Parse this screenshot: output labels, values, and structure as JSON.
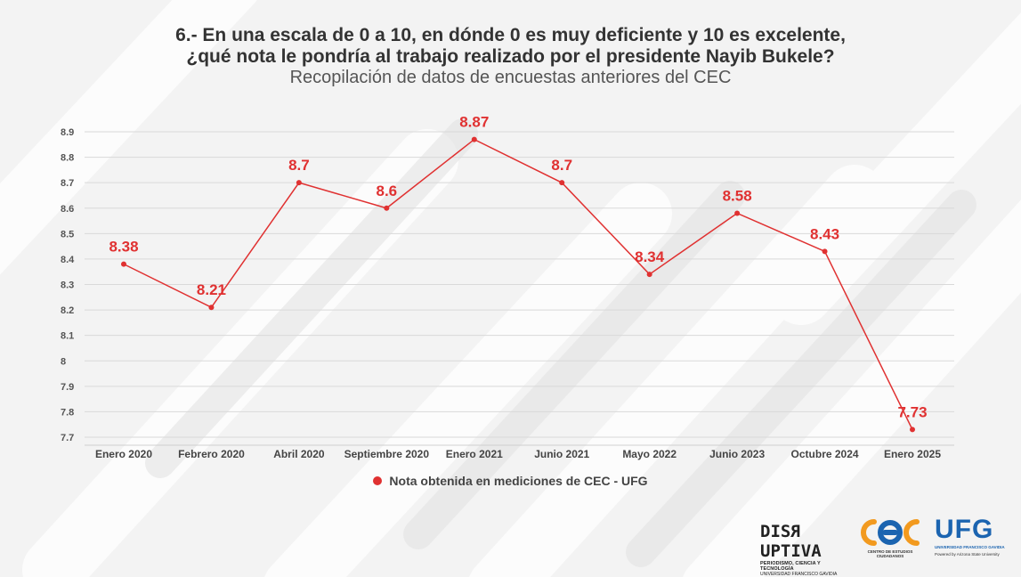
{
  "title_line1": "6.- En una escala de 0 a 10, en dónde 0 es muy deficiente y 10 es excelente,",
  "title_line2": "¿qué nota le pondría al trabajo realizado por el presidente Nayib Bukele?",
  "subtitle": "Recopilación de datos de encuestas anteriores del CEC",
  "legend_label": "Nota obtenida en mediciones de CEC - UFG",
  "colors": {
    "series": "#e03131",
    "grid": "#d9d9d9",
    "text": "#444444"
  },
  "chart_data": {
    "type": "line",
    "categories": [
      "Enero 2020",
      "Febrero 2020",
      "Abril 2020",
      "Septiembre 2020",
      "Enero 2021",
      "Junio 2021",
      "Mayo 2022",
      "Junio 2023",
      "Octubre 2024",
      "Enero 2025"
    ],
    "series": [
      {
        "name": "Nota obtenida en mediciones de CEC - UFG",
        "values": [
          8.38,
          8.21,
          8.7,
          8.6,
          8.87,
          8.7,
          8.34,
          8.58,
          8.43,
          7.73
        ]
      }
    ],
    "data_labels": [
      "8.38",
      "8.21",
      "8.7",
      "8.6",
      "8.87",
      "8.7",
      "8.34",
      "8.58",
      "8.43",
      "7.73"
    ],
    "yticks": [
      "7.7",
      "7.8",
      "7.9",
      "8",
      "8.1",
      "8.2",
      "8.3",
      "8.4",
      "8.5",
      "8.6",
      "8.7",
      "8.8",
      "8.9"
    ],
    "ylim": [
      7.7,
      8.9
    ],
    "grid": true,
    "legend_position": "bottom"
  },
  "logos": {
    "disruptiva": {
      "word_a": "DIS",
      "word_r": "R",
      "word_b": "UPTIVA",
      "line1": "PERIODISMO, CIENCIA Y TECNOLOGÍA",
      "line2": "UNIVERSIDAD FRANCISCO GAVIDIA"
    },
    "cec": {
      "caption": "CENTRO DE ESTUDIOS CIUDADANOS"
    },
    "ufg": {
      "name": "UFG",
      "line1": "UNIVERSIDAD FRANCISCO GAVIDIA",
      "line2": "Powered by Arizona State University"
    }
  }
}
